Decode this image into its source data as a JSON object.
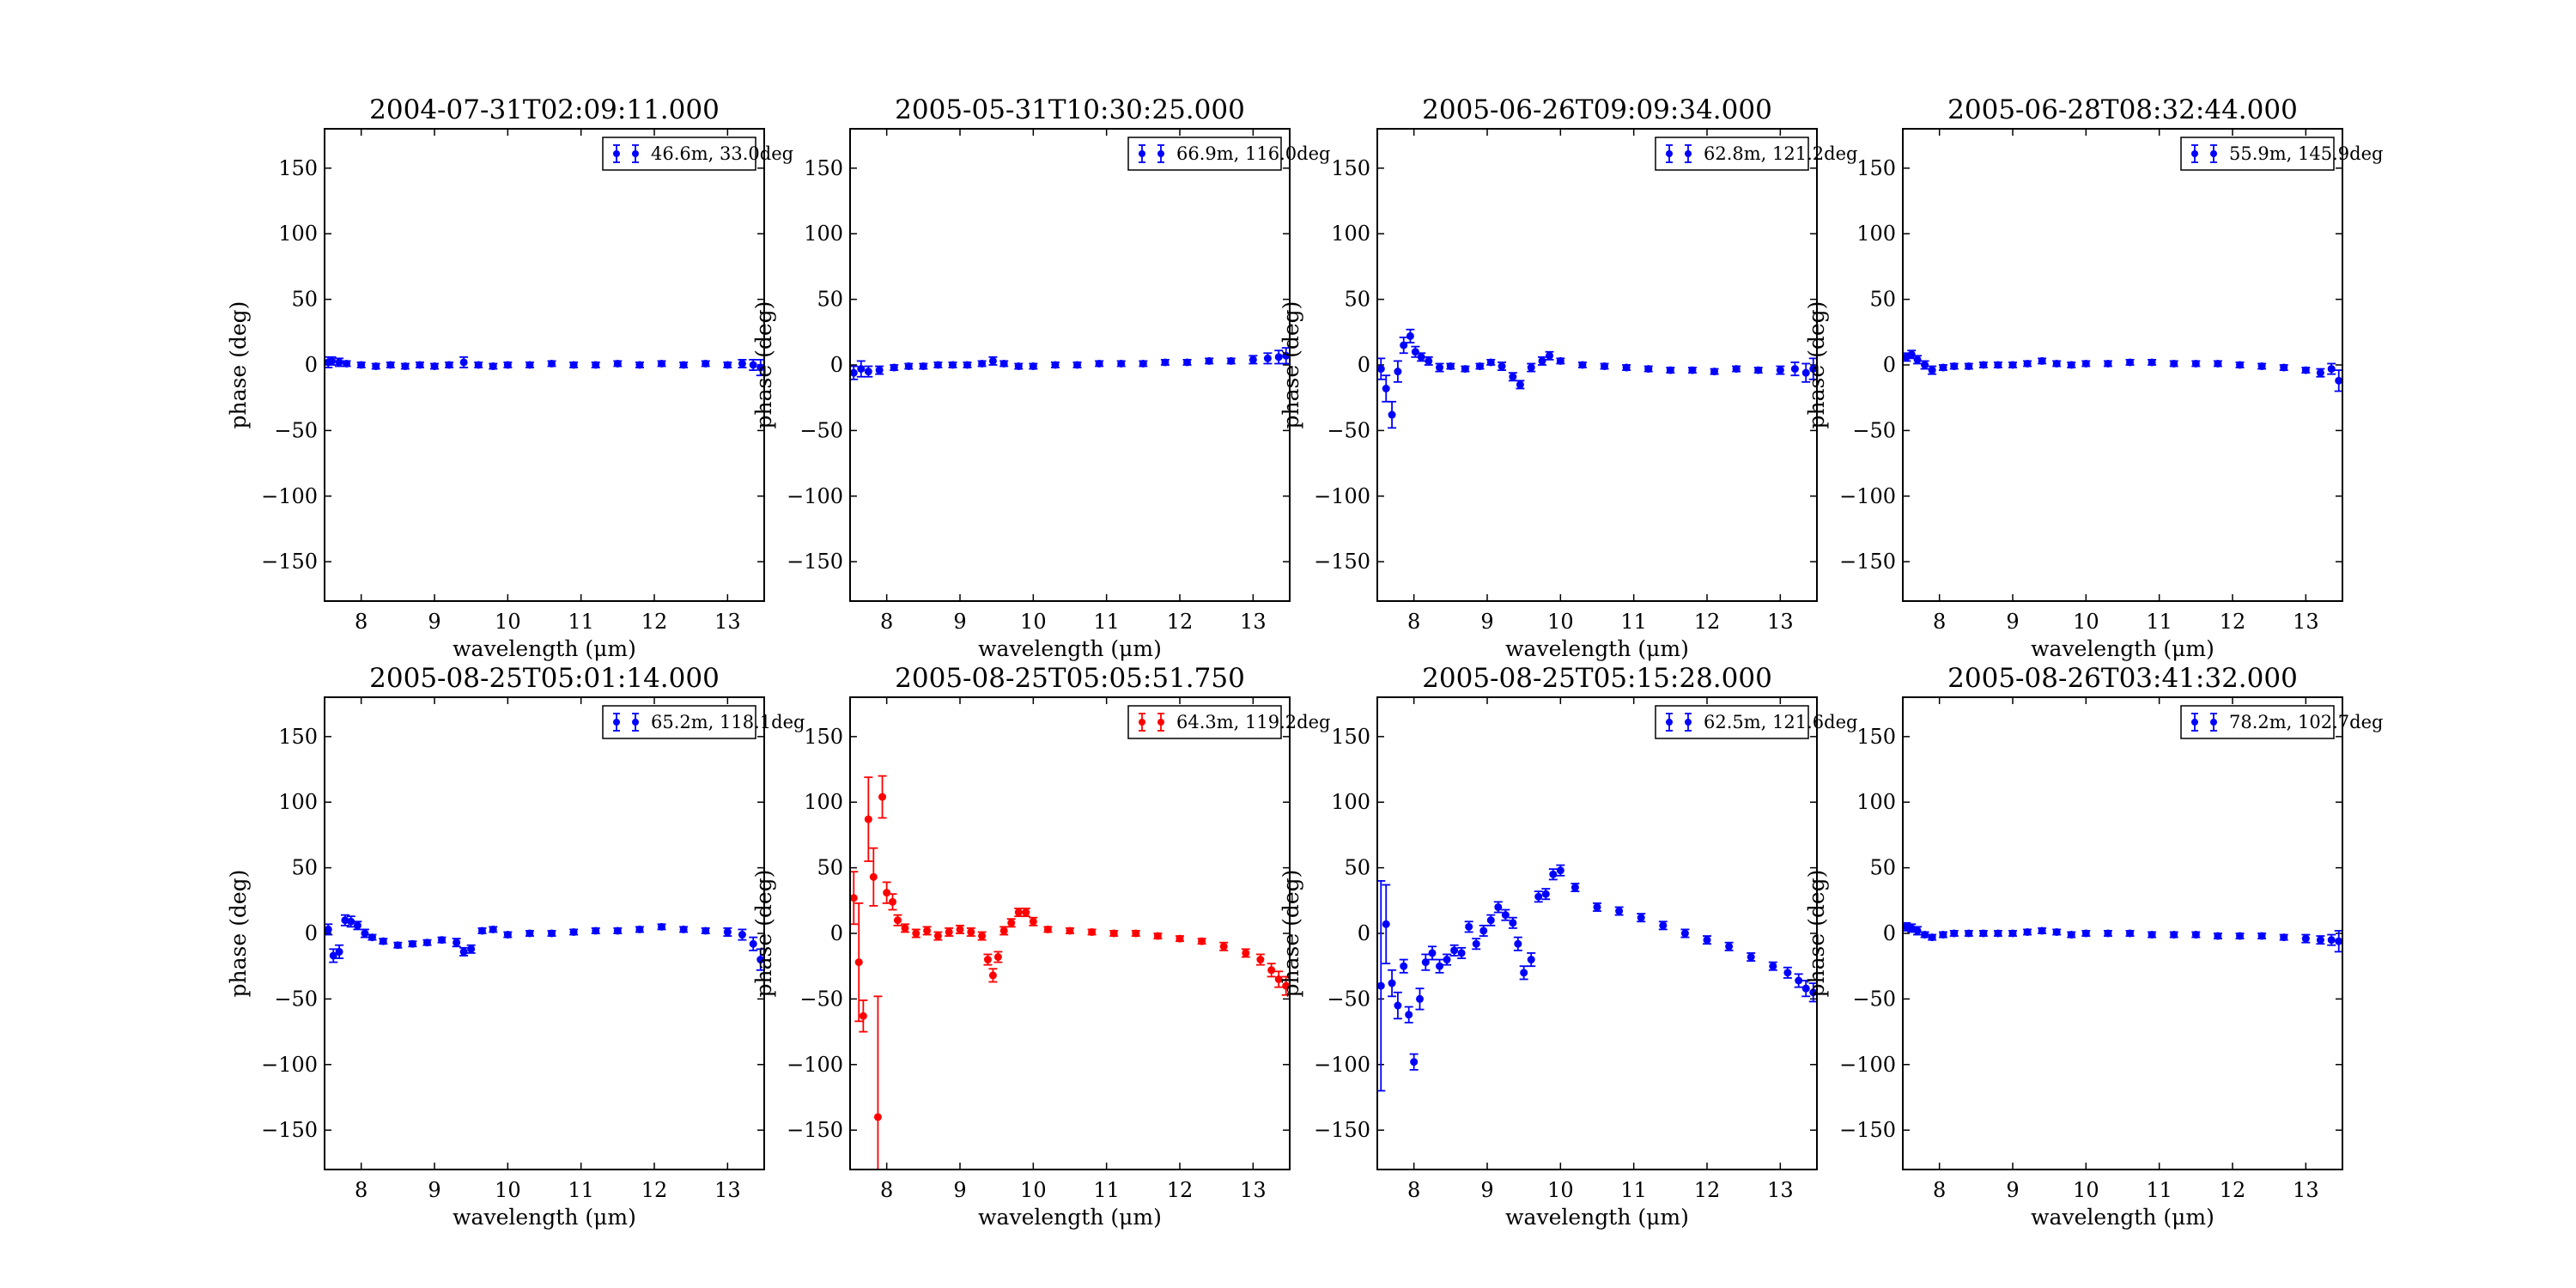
{
  "chart_data": [
    {
      "type": "scatter",
      "title": "2004-07-31T02:09:11.000",
      "xlabel": "wavelength (μm)",
      "ylabel": "phase (deg)",
      "xlim": [
        7.5,
        13.5
      ],
      "ylim": [
        -180,
        180
      ],
      "xticks": [
        "8",
        "9",
        "10",
        "11",
        "12",
        "13"
      ],
      "yticks": [
        "150",
        "100",
        "50",
        "0",
        "−50",
        "−100",
        "−150"
      ],
      "legend_position": "top-right",
      "series": [
        {
          "name": "46.6m, 33.0deg",
          "color": "#0000ff",
          "x": [
            7.55,
            7.6,
            7.7,
            7.8,
            8.0,
            8.2,
            8.4,
            8.6,
            8.8,
            9.0,
            9.2,
            9.4,
            9.6,
            9.8,
            10.0,
            10.3,
            10.6,
            10.9,
            11.2,
            11.5,
            11.8,
            12.1,
            12.4,
            12.7,
            13.0,
            13.2,
            13.35,
            13.45
          ],
          "y": [
            2,
            3,
            2,
            1,
            0,
            -1,
            0,
            -1,
            0,
            -1,
            0,
            2,
            0,
            -1,
            0,
            0,
            1,
            0,
            0,
            1,
            0,
            1,
            0,
            1,
            0,
            1,
            0,
            -2
          ],
          "err": [
            4,
            3,
            3,
            2,
            2,
            2,
            2,
            2,
            2,
            2,
            2,
            4,
            2,
            2,
            2,
            2,
            2,
            2,
            2,
            2,
            2,
            2,
            2,
            2,
            2,
            3,
            4,
            6
          ]
        }
      ]
    },
    {
      "type": "scatter",
      "title": "2005-05-31T10:30:25.000",
      "xlabel": "wavelength (μm)",
      "ylabel": "phase (deg)",
      "xlim": [
        7.5,
        13.5
      ],
      "ylim": [
        -180,
        180
      ],
      "xticks": [
        "8",
        "9",
        "10",
        "11",
        "12",
        "13"
      ],
      "yticks": [
        "150",
        "100",
        "50",
        "0",
        "−50",
        "−100",
        "−150"
      ],
      "legend_position": "top-right",
      "series": [
        {
          "name": "66.9m, 116.0deg",
          "color": "#0000ff",
          "x": [
            7.55,
            7.65,
            7.75,
            7.9,
            8.1,
            8.3,
            8.5,
            8.7,
            8.9,
            9.1,
            9.3,
            9.45,
            9.6,
            9.8,
            10.0,
            10.3,
            10.6,
            10.9,
            11.2,
            11.5,
            11.8,
            12.1,
            12.4,
            12.7,
            13.0,
            13.2,
            13.35,
            13.45
          ],
          "y": [
            -6,
            -3,
            -5,
            -4,
            -2,
            -1,
            -1,
            0,
            0,
            0,
            1,
            3,
            1,
            -1,
            -1,
            0,
            0,
            1,
            1,
            1,
            2,
            2,
            3,
            3,
            4,
            5,
            6,
            7
          ],
          "err": [
            5,
            6,
            4,
            3,
            2,
            2,
            2,
            2,
            2,
            2,
            2,
            3,
            2,
            2,
            2,
            2,
            2,
            2,
            2,
            2,
            2,
            2,
            2,
            2,
            3,
            4,
            5,
            6
          ]
        }
      ]
    },
    {
      "type": "scatter",
      "title": "2005-06-26T09:09:34.000",
      "xlabel": "wavelength (μm)",
      "ylabel": "phase (deg)",
      "xlim": [
        7.5,
        13.5
      ],
      "ylim": [
        -180,
        180
      ],
      "xticks": [
        "8",
        "9",
        "10",
        "11",
        "12",
        "13"
      ],
      "yticks": [
        "150",
        "100",
        "50",
        "0",
        "−50",
        "−100",
        "−150"
      ],
      "legend_position": "top-right",
      "series": [
        {
          "name": "62.8m, 121.2deg",
          "color": "#0000ff",
          "x": [
            7.55,
            7.62,
            7.7,
            7.78,
            7.86,
            7.95,
            8.02,
            8.1,
            8.2,
            8.35,
            8.5,
            8.7,
            8.9,
            9.05,
            9.2,
            9.35,
            9.45,
            9.6,
            9.75,
            9.85,
            10.0,
            10.3,
            10.6,
            10.9,
            11.2,
            11.5,
            11.8,
            12.1,
            12.4,
            12.7,
            13.0,
            13.2,
            13.35,
            13.45
          ],
          "y": [
            -3,
            -18,
            -38,
            -5,
            15,
            22,
            10,
            6,
            3,
            -2,
            -1,
            -3,
            -1,
            2,
            -1,
            -9,
            -15,
            -2,
            3,
            7,
            3,
            0,
            -1,
            -2,
            -3,
            -4,
            -4,
            -5,
            -3,
            -4,
            -4,
            -3,
            -6,
            -3
          ],
          "err": [
            8,
            10,
            10,
            8,
            6,
            5,
            4,
            3,
            3,
            3,
            2,
            2,
            2,
            2,
            3,
            3,
            3,
            3,
            3,
            3,
            2,
            2,
            2,
            2,
            2,
            2,
            2,
            2,
            2,
            2,
            3,
            5,
            7,
            8
          ]
        }
      ]
    },
    {
      "type": "scatter",
      "title": "2005-06-28T08:32:44.000",
      "xlabel": "wavelength (μm)",
      "ylabel": "phase (deg)",
      "xlim": [
        7.5,
        13.5
      ],
      "ylim": [
        -180,
        180
      ],
      "xticks": [
        "8",
        "9",
        "10",
        "11",
        "12",
        "13"
      ],
      "yticks": [
        "150",
        "100",
        "50",
        "0",
        "−50",
        "−100",
        "−150"
      ],
      "legend_position": "top-right",
      "series": [
        {
          "name": "55.9m, 145.9deg",
          "color": "#0000ff",
          "x": [
            7.55,
            7.62,
            7.7,
            7.8,
            7.9,
            8.05,
            8.2,
            8.4,
            8.6,
            8.8,
            9.0,
            9.2,
            9.4,
            9.6,
            9.8,
            10.0,
            10.3,
            10.6,
            10.9,
            11.2,
            11.5,
            11.8,
            12.1,
            12.4,
            12.7,
            13.0,
            13.2,
            13.35,
            13.45
          ],
          "y": [
            6,
            8,
            4,
            0,
            -4,
            -2,
            -1,
            -1,
            0,
            0,
            0,
            1,
            3,
            1,
            0,
            1,
            1,
            2,
            2,
            1,
            1,
            1,
            0,
            -1,
            -2,
            -4,
            -6,
            -3,
            -12
          ],
          "err": [
            3,
            3,
            3,
            3,
            3,
            2,
            2,
            2,
            2,
            2,
            2,
            2,
            2,
            2,
            2,
            2,
            2,
            2,
            2,
            2,
            2,
            2,
            2,
            2,
            2,
            2,
            3,
            4,
            8
          ]
        }
      ]
    },
    {
      "type": "scatter",
      "title": "2005-08-25T05:01:14.000",
      "xlabel": "wavelength (μm)",
      "ylabel": "phase (deg)",
      "xlim": [
        7.5,
        13.5
      ],
      "ylim": [
        -180,
        180
      ],
      "xticks": [
        "8",
        "9",
        "10",
        "11",
        "12",
        "13"
      ],
      "yticks": [
        "150",
        "100",
        "50",
        "0",
        "−50",
        "−100",
        "−150"
      ],
      "legend_position": "top-right",
      "series": [
        {
          "name": "65.2m, 118.1deg",
          "color": "#0000ff",
          "x": [
            7.55,
            7.62,
            7.7,
            7.78,
            7.86,
            7.95,
            8.05,
            8.15,
            8.3,
            8.5,
            8.7,
            8.9,
            9.1,
            9.3,
            9.4,
            9.5,
            9.65,
            9.8,
            10.0,
            10.3,
            10.6,
            10.9,
            11.2,
            11.5,
            11.8,
            12.1,
            12.4,
            12.7,
            13.0,
            13.2,
            13.35,
            13.45
          ],
          "y": [
            3,
            -17,
            -14,
            10,
            9,
            6,
            0,
            -3,
            -6,
            -9,
            -8,
            -7,
            -5,
            -7,
            -14,
            -12,
            2,
            3,
            -1,
            0,
            0,
            1,
            2,
            2,
            3,
            5,
            3,
            2,
            1,
            -1,
            -8,
            -20
          ],
          "err": [
            4,
            5,
            5,
            4,
            4,
            3,
            3,
            2,
            2,
            2,
            2,
            2,
            2,
            3,
            3,
            3,
            2,
            2,
            2,
            2,
            2,
            2,
            2,
            2,
            2,
            2,
            2,
            2,
            3,
            4,
            5,
            8
          ]
        }
      ]
    },
    {
      "type": "scatter",
      "title": "2005-08-25T05:05:51.750",
      "xlabel": "wavelength (μm)",
      "ylabel": "phase (deg)",
      "xlim": [
        7.5,
        13.5
      ],
      "ylim": [
        -180,
        180
      ],
      "xticks": [
        "8",
        "9",
        "10",
        "11",
        "12",
        "13"
      ],
      "yticks": [
        "150",
        "100",
        "50",
        "0",
        "−50",
        "−100",
        "−150"
      ],
      "legend_position": "top-right",
      "series": [
        {
          "name": "64.3m, 119.2deg",
          "color": "#ff0000",
          "x": [
            7.55,
            7.62,
            7.68,
            7.75,
            7.82,
            7.88,
            7.94,
            8.0,
            8.08,
            8.15,
            8.25,
            8.4,
            8.55,
            8.7,
            8.85,
            9.0,
            9.15,
            9.3,
            9.38,
            9.45,
            9.52,
            9.6,
            9.7,
            9.8,
            9.9,
            10.0,
            10.2,
            10.5,
            10.8,
            11.1,
            11.4,
            11.7,
            12.0,
            12.3,
            12.6,
            12.9,
            13.1,
            13.25,
            13.35,
            13.45
          ],
          "y": [
            27,
            -22,
            -63,
            87,
            43,
            -140,
            104,
            31,
            24,
            10,
            4,
            0,
            2,
            -2,
            1,
            3,
            1,
            -2,
            -20,
            -32,
            -18,
            2,
            8,
            16,
            16,
            9,
            3,
            2,
            1,
            0,
            0,
            -2,
            -4,
            -6,
            -10,
            -15,
            -20,
            -28,
            -35,
            -40
          ],
          "err": [
            20,
            45,
            12,
            32,
            22,
            92,
            16,
            8,
            6,
            4,
            3,
            3,
            3,
            3,
            3,
            3,
            3,
            3,
            4,
            5,
            4,
            3,
            3,
            3,
            3,
            3,
            2,
            2,
            2,
            2,
            2,
            2,
            2,
            2,
            3,
            3,
            4,
            5,
            6,
            7
          ]
        }
      ]
    },
    {
      "type": "scatter",
      "title": "2005-08-25T05:15:28.000",
      "xlabel": "wavelength (μm)",
      "ylabel": "phase (deg)",
      "xlim": [
        7.5,
        13.5
      ],
      "ylim": [
        -180,
        180
      ],
      "xticks": [
        "8",
        "9",
        "10",
        "11",
        "12",
        "13"
      ],
      "yticks": [
        "150",
        "100",
        "50",
        "0",
        "−50",
        "−100",
        "−150"
      ],
      "legend_position": "top-right",
      "series": [
        {
          "name": "62.5m, 121.6deg",
          "color": "#0000ff",
          "x": [
            7.55,
            7.62,
            7.7,
            7.78,
            7.86,
            7.93,
            8.0,
            8.08,
            8.16,
            8.25,
            8.35,
            8.45,
            8.55,
            8.65,
            8.75,
            8.85,
            8.95,
            9.05,
            9.15,
            9.25,
            9.35,
            9.42,
            9.5,
            9.6,
            9.7,
            9.8,
            9.9,
            10.0,
            10.2,
            10.5,
            10.8,
            11.1,
            11.4,
            11.7,
            12.0,
            12.3,
            12.6,
            12.9,
            13.1,
            13.25,
            13.35,
            13.45
          ],
          "y": [
            -40,
            7,
            -38,
            -55,
            -25,
            -62,
            -98,
            -50,
            -22,
            -15,
            -25,
            -20,
            -13,
            -15,
            5,
            -8,
            2,
            10,
            20,
            14,
            8,
            -8,
            -30,
            -20,
            28,
            30,
            45,
            48,
            35,
            20,
            17,
            12,
            6,
            0,
            -5,
            -10,
            -18,
            -25,
            -30,
            -36,
            -42,
            -45
          ],
          "err": [
            80,
            30,
            10,
            10,
            5,
            6,
            6,
            8,
            6,
            5,
            5,
            4,
            4,
            4,
            4,
            4,
            4,
            4,
            4,
            4,
            4,
            5,
            5,
            5,
            4,
            4,
            4,
            4,
            3,
            3,
            3,
            3,
            3,
            3,
            3,
            3,
            3,
            3,
            4,
            5,
            6,
            7
          ]
        }
      ]
    },
    {
      "type": "scatter",
      "title": "2005-08-26T03:41:32.000",
      "xlabel": "wavelength (μm)",
      "ylabel": "phase (deg)",
      "xlim": [
        7.5,
        13.5
      ],
      "ylim": [
        -180,
        180
      ],
      "xticks": [
        "8",
        "9",
        "10",
        "11",
        "12",
        "13"
      ],
      "yticks": [
        "150",
        "100",
        "50",
        "0",
        "−50",
        "−100",
        "−150"
      ],
      "legend_position": "top-right",
      "series": [
        {
          "name": "78.2m, 102.7deg",
          "color": "#0000ff",
          "x": [
            7.55,
            7.62,
            7.7,
            7.8,
            7.9,
            8.05,
            8.2,
            8.4,
            8.6,
            8.8,
            9.0,
            9.2,
            9.4,
            9.6,
            9.8,
            10.0,
            10.3,
            10.6,
            10.9,
            11.2,
            11.5,
            11.8,
            12.1,
            12.4,
            12.7,
            13.0,
            13.2,
            13.35,
            13.45
          ],
          "y": [
            5,
            4,
            2,
            -1,
            -3,
            -1,
            0,
            0,
            0,
            0,
            0,
            1,
            2,
            1,
            -1,
            0,
            0,
            0,
            -1,
            -1,
            -1,
            -2,
            -2,
            -2,
            -3,
            -4,
            -5,
            -5,
            -6
          ],
          "err": [
            3,
            3,
            3,
            2,
            2,
            2,
            2,
            2,
            2,
            2,
            2,
            2,
            2,
            2,
            2,
            2,
            2,
            2,
            2,
            2,
            2,
            2,
            2,
            2,
            2,
            3,
            3,
            4,
            8
          ]
        }
      ]
    }
  ]
}
